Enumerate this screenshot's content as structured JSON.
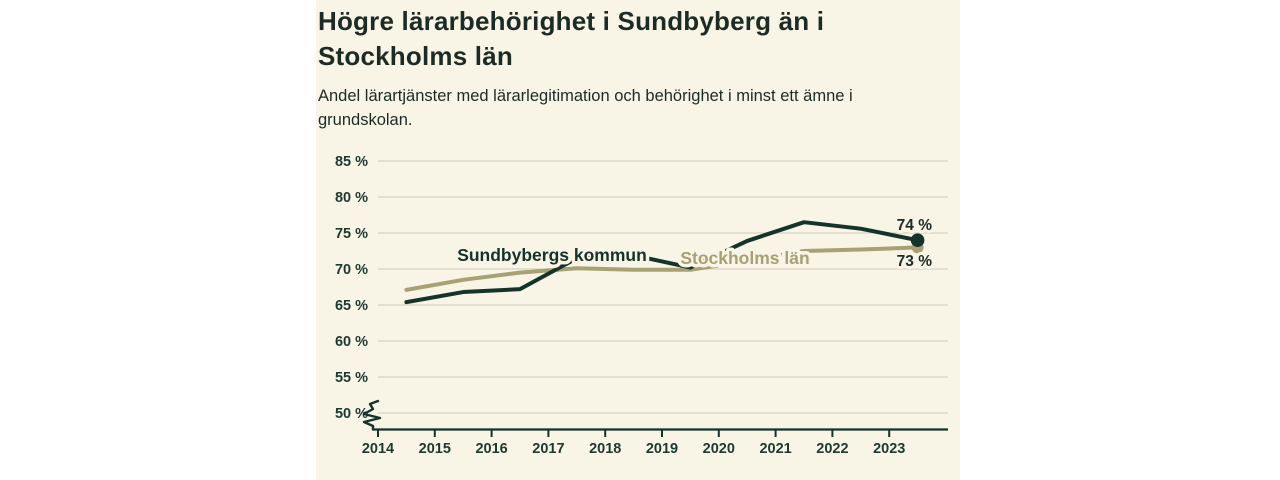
{
  "header": {
    "title": "Högre lärarbehörighet i Sundbyberg än i Stockholms län",
    "subtitle": "Andel lärartjänster med lärarlegitimation och behörighet i minst ett ämne i grundskolan."
  },
  "colors": {
    "panel_background": "#f8f4e6",
    "gridline": "#dcd9ca",
    "axis": "#14332a",
    "tick_label": "#1d3a30",
    "value_label": "#1d2b26",
    "series_sundbyberg": "#14332a",
    "series_stockholm": "#a7a173"
  },
  "chart_data": {
    "type": "line",
    "title": "Högre lärarbehörighet i Sundbyberg än i Stockholms län",
    "subtitle": "Andel lärartjänster med lärarlegitimation och behörighet i minst ett ämne i grundskolan.",
    "x": [
      2014.5,
      2015.5,
      2016.5,
      2017.5,
      2018.5,
      2019.5,
      2020.5,
      2021.5,
      2022.5,
      2023.5
    ],
    "x_tick_labels": [
      "2014",
      "2015",
      "2016",
      "2017",
      "2018",
      "2019",
      "2020",
      "2021",
      "2022",
      "2023"
    ],
    "y_ticks": [
      85,
      80,
      75,
      70,
      65,
      60,
      55,
      50
    ],
    "y_tick_suffix": " %",
    "ylim": [
      50,
      85
    ],
    "axis_break_at_bottom": true,
    "grid": "horizontal",
    "legend_position": "inline-labels",
    "series": [
      {
        "name": "Sundbybergs kommun",
        "color": "#14332a",
        "values": [
          65.4,
          66.8,
          67.2,
          71.5,
          71.9,
          70.2,
          73.9,
          76.5,
          75.6,
          74
        ],
        "end_label": "74 %"
      },
      {
        "name": "Stockholms län",
        "color": "#a7a173",
        "values": [
          67.1,
          68.5,
          69.5,
          70.1,
          69.9,
          69.9,
          71.1,
          72.5,
          72.7,
          73
        ],
        "end_label": "73 %"
      }
    ]
  }
}
